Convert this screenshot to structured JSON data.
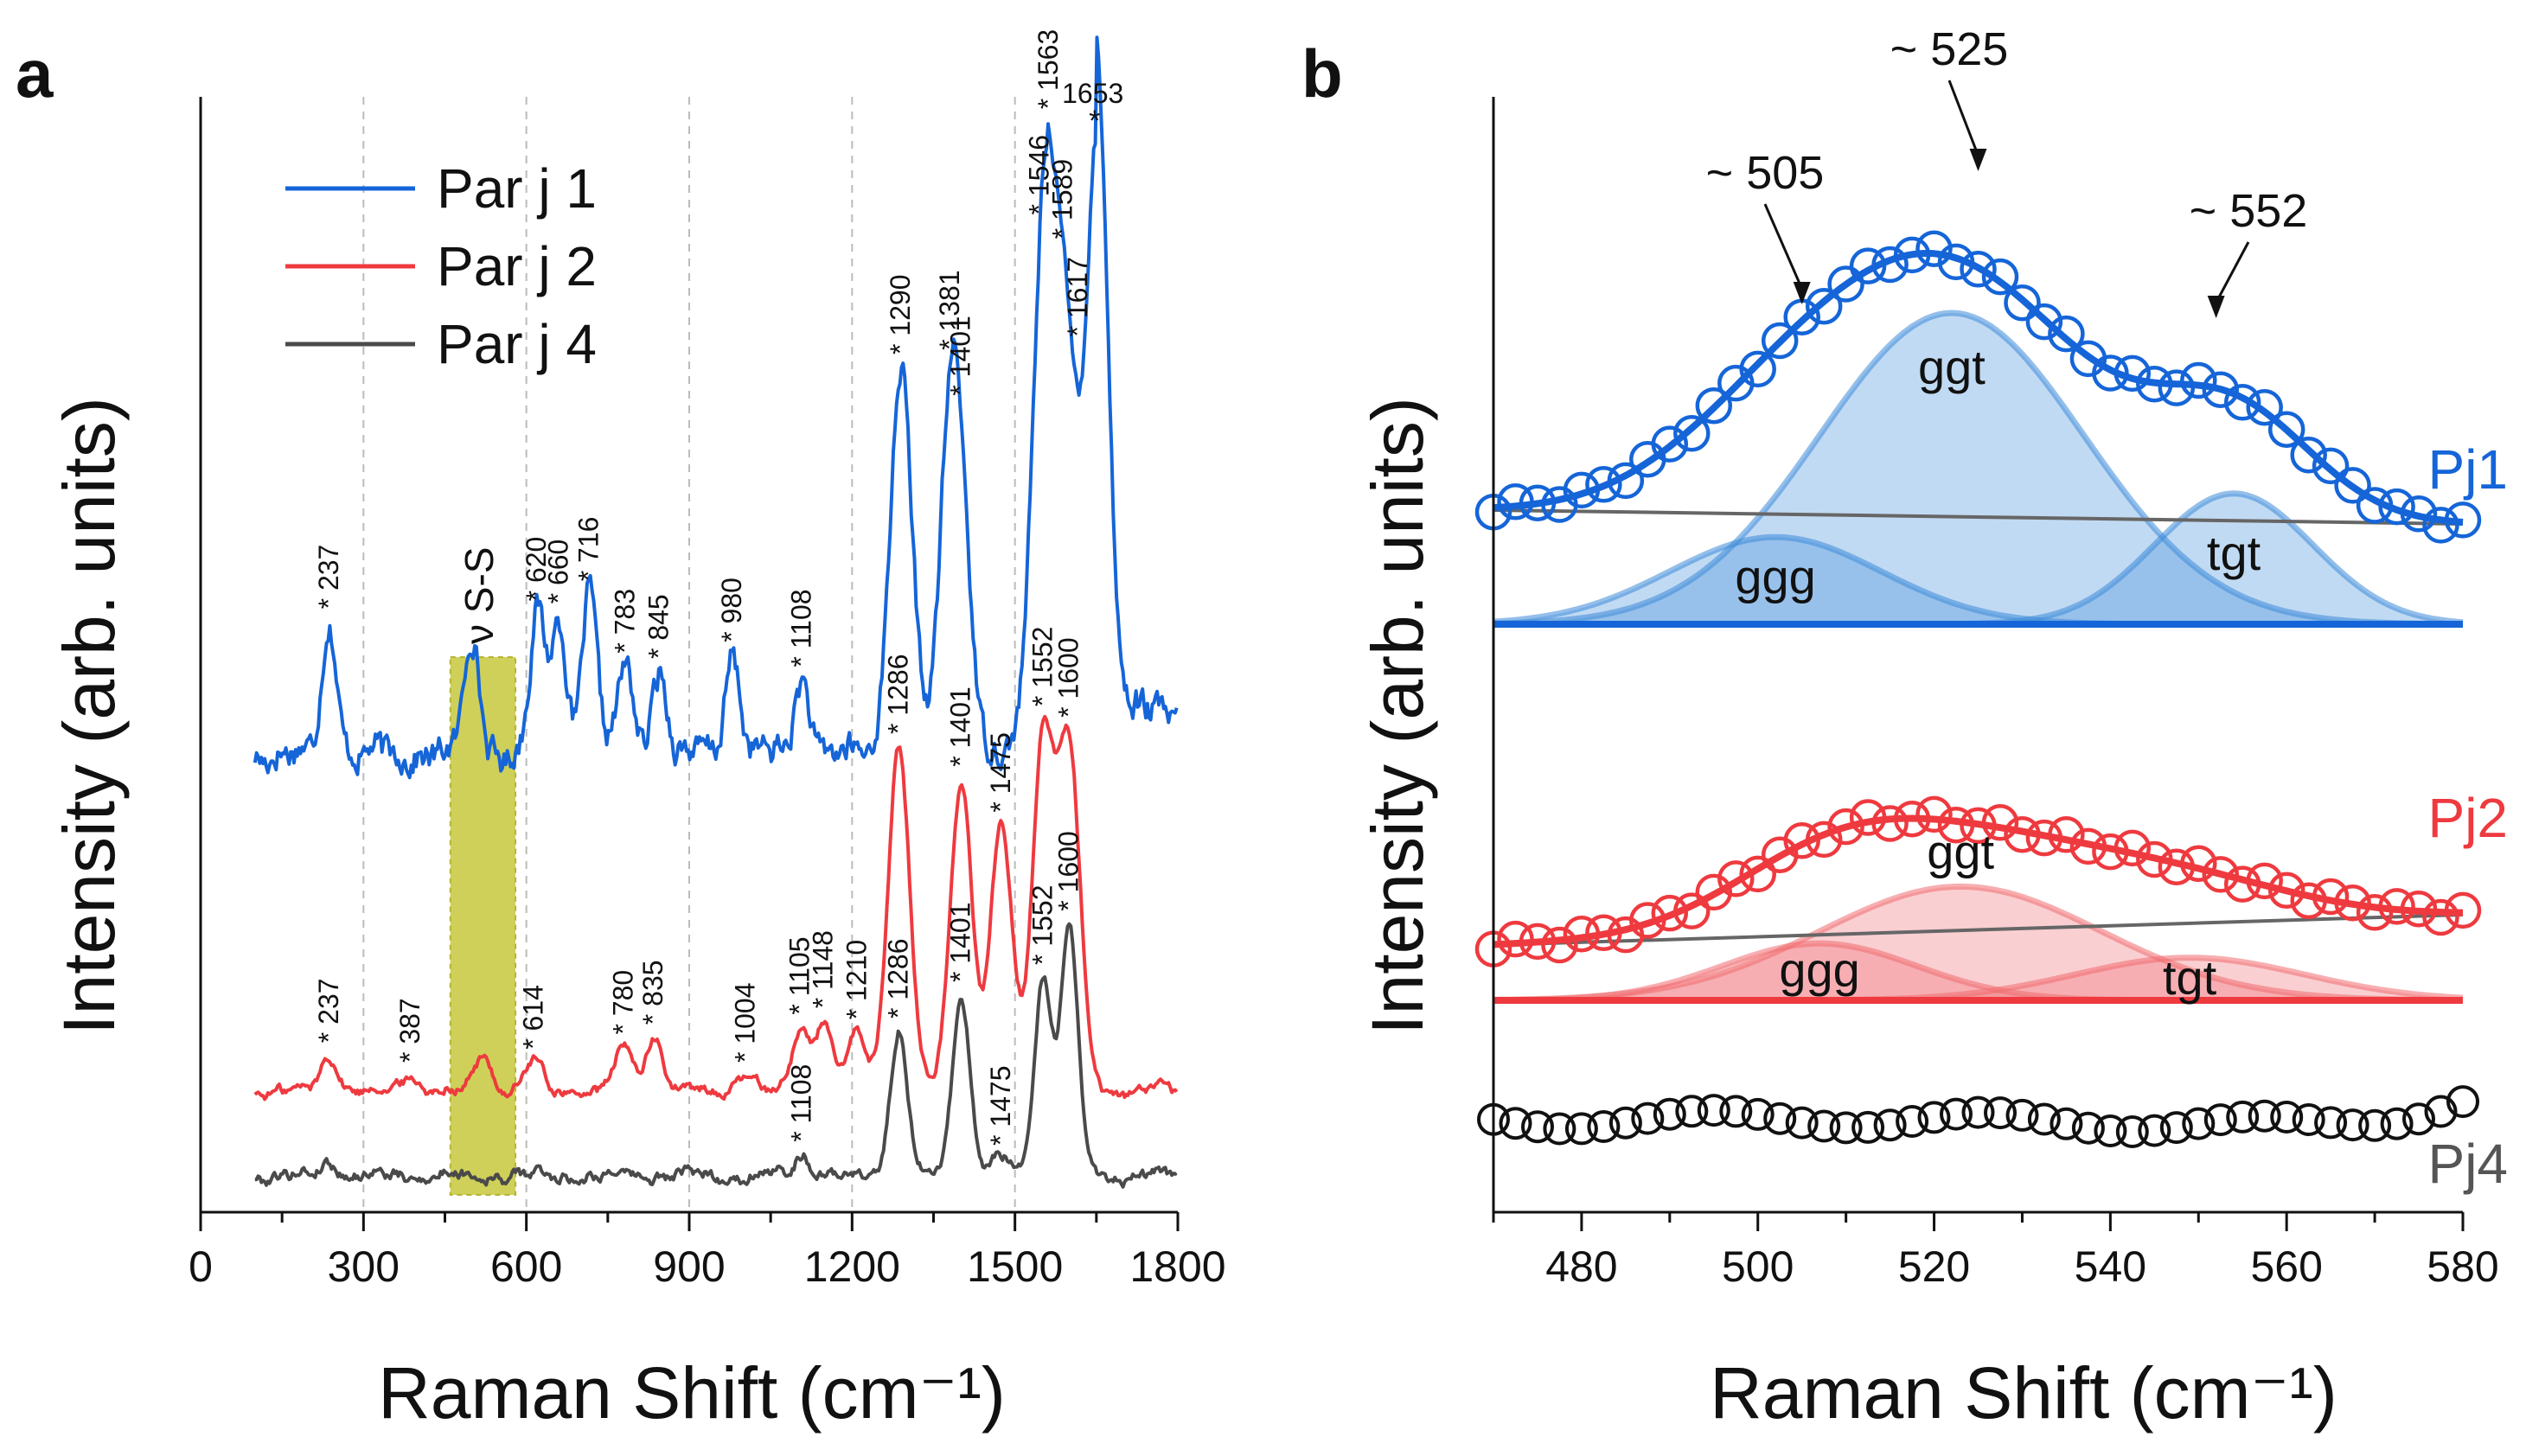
{
  "chart_data": [
    {
      "panel": "a",
      "type": "line",
      "xlabel": "Raman Shift (cm⁻¹)",
      "ylabel": "Intensity (arb. units)",
      "xlim": [
        0,
        1800
      ],
      "xticks": [
        "0",
        "300",
        "600",
        "900",
        "1200",
        "1500",
        "1800"
      ],
      "band_label": "ν S-S",
      "band_range": [
        460,
        580
      ],
      "legend": [
        "Par j 1",
        "Par j 2",
        "Par j 4"
      ],
      "series": [
        {
          "name": "Par j 1",
          "color": "#1565d8",
          "peaks": [
            {
              "x": 237,
              "y": 0.48,
              "label": "237"
            },
            {
              "x": 500,
              "y": 0.43,
              "label": ""
            },
            {
              "x": 620,
              "y": 0.5,
              "label": "620"
            },
            {
              "x": 660,
              "y": 0.49,
              "label": "660"
            },
            {
              "x": 716,
              "y": 0.58,
              "label": "716"
            },
            {
              "x": 783,
              "y": 0.32,
              "label": "783"
            },
            {
              "x": 845,
              "y": 0.3,
              "label": "845"
            },
            {
              "x": 980,
              "y": 0.36,
              "label": "980"
            },
            {
              "x": 1108,
              "y": 0.27,
              "label": "1108"
            },
            {
              "x": 1290,
              "y": 1.4,
              "label": "1290"
            },
            {
              "x": 1381,
              "y": 1.04,
              "label": "1381"
            },
            {
              "x": 1401,
              "y": 0.62,
              "label": "1401"
            },
            {
              "x": 1546,
              "y": 1.0,
              "label": "1546"
            },
            {
              "x": 1563,
              "y": 1.16,
              "label": "1563"
            },
            {
              "x": 1589,
              "y": 0.96,
              "label": "1589"
            },
            {
              "x": 1617,
              "y": 0.66,
              "label": "1617"
            },
            {
              "x": 1653,
              "y": 2.08,
              "label": "1653"
            }
          ]
        },
        {
          "name": "Par j 2",
          "color": "#ee3a3f",
          "peaks": [
            {
              "x": 237,
              "y": 0.22,
              "label": "237"
            },
            {
              "x": 387,
              "y": 0.1,
              "label": "387"
            },
            {
              "x": 520,
              "y": 0.22,
              "label": ""
            },
            {
              "x": 614,
              "y": 0.18,
              "label": "614"
            },
            {
              "x": 780,
              "y": 0.27,
              "label": "780"
            },
            {
              "x": 835,
              "y": 0.33,
              "label": "835"
            },
            {
              "x": 1004,
              "y": 0.1,
              "label": "1004"
            },
            {
              "x": 1105,
              "y": 0.38,
              "label": "1105"
            },
            {
              "x": 1148,
              "y": 0.42,
              "label": "1148"
            },
            {
              "x": 1210,
              "y": 0.36,
              "label": "1210"
            },
            {
              "x": 1286,
              "y": 2.1,
              "label": "1286"
            },
            {
              "x": 1401,
              "y": 1.9,
              "label": "1401"
            },
            {
              "x": 1475,
              "y": 1.62,
              "label": "1475"
            },
            {
              "x": 1552,
              "y": 2.15,
              "label": "1552"
            },
            {
              "x": 1600,
              "y": 2.08,
              "label": "1600"
            }
          ]
        },
        {
          "name": "Par j 4",
          "color": "#4a4a4a",
          "peaks": [
            {
              "x": 237,
              "y": 0.08,
              "label": ""
            },
            {
              "x": 1108,
              "y": 0.12,
              "label": "1108"
            },
            {
              "x": 1286,
              "y": 0.8,
              "label": "1286"
            },
            {
              "x": 1401,
              "y": 1.0,
              "label": "1401"
            },
            {
              "x": 1475,
              "y": 0.1,
              "label": "1475"
            },
            {
              "x": 1552,
              "y": 1.08,
              "label": "1552"
            },
            {
              "x": 1600,
              "y": 1.38,
              "label": "1600"
            }
          ]
        }
      ]
    },
    {
      "panel": "b",
      "type": "scatter",
      "xlabel": "Raman Shift (cm⁻¹)",
      "ylabel": "Intensity (arb. units)",
      "xlim": [
        470,
        580
      ],
      "xticks": [
        "480",
        "500",
        "520",
        "540",
        "560",
        "580"
      ],
      "annotations": [
        "~ 505",
        "~ 525",
        "~ 552"
      ],
      "series": [
        {
          "name": "Pj1",
          "color": "#1565d8",
          "components": [
            {
              "name": "ggg",
              "center": 502,
              "amplitude": 0.28,
              "width": 12
            },
            {
              "name": "ggt",
              "center": 522,
              "amplitude": 1.0,
              "width": 15
            },
            {
              "name": "tgt",
              "center": 554,
              "amplitude": 0.42,
              "width": 9
            }
          ]
        },
        {
          "name": "Pj2",
          "color": "#ee3a3f",
          "components": [
            {
              "name": "ggg",
              "center": 507,
              "amplitude": 0.28,
              "width": 11
            },
            {
              "name": "ggt",
              "center": 523,
              "amplitude": 0.56,
              "width": 16
            },
            {
              "name": "tgt",
              "center": 549,
              "amplitude": 0.21,
              "width": 13
            }
          ]
        },
        {
          "name": "Pj4",
          "color": "#111111",
          "components": []
        }
      ]
    }
  ]
}
